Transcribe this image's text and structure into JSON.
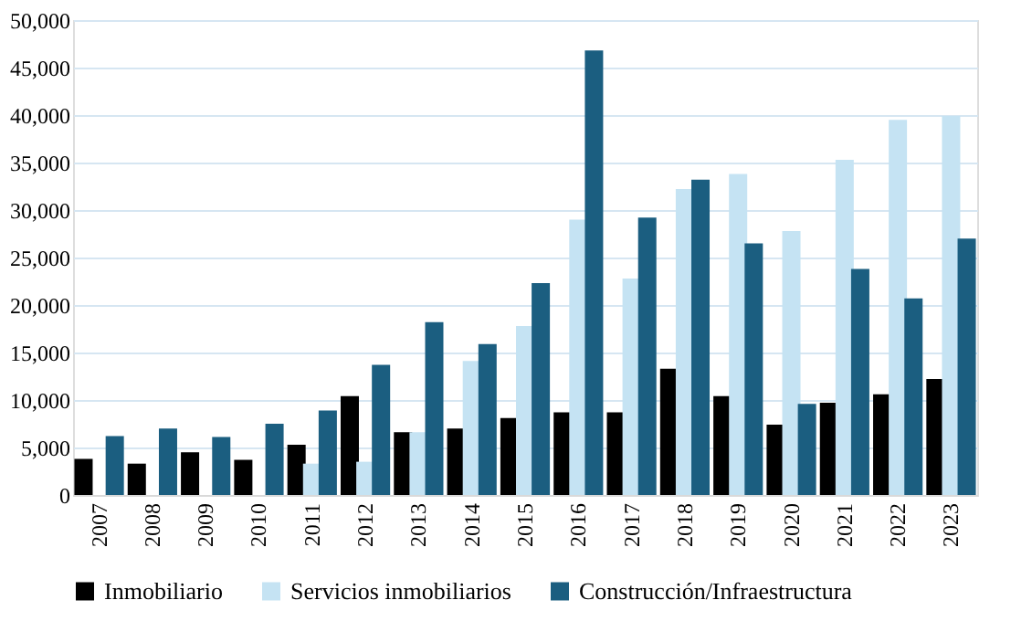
{
  "chart_data": {
    "type": "bar",
    "categories": [
      "2007",
      "2008",
      "2009",
      "2010",
      "2011",
      "2012",
      "2013",
      "2014",
      "2015",
      "2016",
      "2017",
      "2018",
      "2019",
      "2020",
      "2021",
      "2022",
      "2023"
    ],
    "series": [
      {
        "name": "Inmobiliario",
        "color": "#000000",
        "values": [
          3800,
          3300,
          4500,
          3700,
          5300,
          10400,
          6600,
          7000,
          8100,
          8700,
          8700,
          13300,
          10400,
          7400,
          9700,
          10600,
          12200
        ]
      },
      {
        "name": "Servicios inmobiliarios",
        "color": "#c5e3f3",
        "values": [
          null,
          null,
          null,
          null,
          3300,
          3500,
          6600,
          14100,
          17800,
          29000,
          22800,
          32200,
          33800,
          27800,
          35300,
          39500,
          39900
        ]
      },
      {
        "name": "Construcción/Infraestructura",
        "color": "#1b5e80",
        "values": [
          6200,
          7000,
          6100,
          7500,
          8900,
          13700,
          18200,
          15900,
          22300,
          46800,
          29200,
          33200,
          26500,
          9600,
          23800,
          20700,
          27000
        ]
      }
    ],
    "ylim": [
      0,
      50000
    ],
    "yticks": [
      {
        "value": 0,
        "label": "0"
      },
      {
        "value": 5000,
        "label": "5,000"
      },
      {
        "value": 10000,
        "label": "10,000"
      },
      {
        "value": 15000,
        "label": "15,000"
      },
      {
        "value": 20000,
        "label": "20,000"
      },
      {
        "value": 25000,
        "label": "25,000"
      },
      {
        "value": 30000,
        "label": "30,000"
      },
      {
        "value": 35000,
        "label": "35,000"
      },
      {
        "value": 40000,
        "label": "40,000"
      },
      {
        "value": 45000,
        "label": "45,000"
      },
      {
        "value": 50000,
        "label": "50,000"
      }
    ],
    "grid": "y",
    "legend": "bottom"
  }
}
